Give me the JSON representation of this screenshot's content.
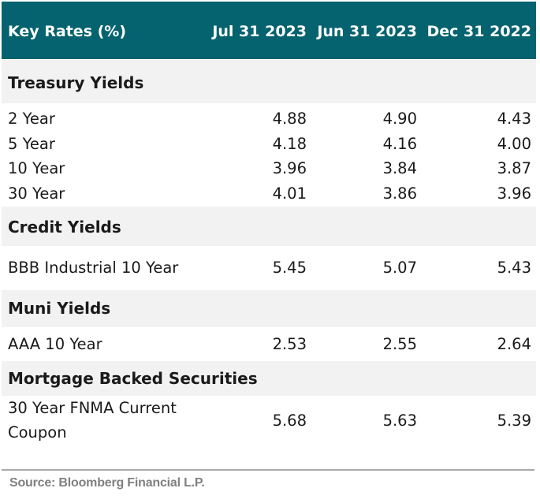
{
  "table": {
    "header": {
      "label": "Key Rates (%)",
      "col1": "Jul 31 2023",
      "col2": "Jun 31 2023",
      "col3": "Dec 31 2022"
    },
    "sections": [
      {
        "title": "Treasury Yields",
        "rows": [
          {
            "label": "2 Year",
            "v1": "4.88",
            "v2": "4.90",
            "v3": "4.43"
          },
          {
            "label": "5 Year",
            "v1": "4.18",
            "v2": "4.16",
            "v3": "4.00"
          },
          {
            "label": "10 Year",
            "v1": "3.96",
            "v2": "3.84",
            "v3": "3.87"
          },
          {
            "label": "30 Year",
            "v1": "4.01",
            "v2": "3.86",
            "v3": "3.96"
          }
        ]
      },
      {
        "title": "Credit Yields",
        "rows": [
          {
            "label": "BBB Industrial 10 Year",
            "v1": "5.45",
            "v2": "5.07",
            "v3": "5.43"
          }
        ]
      },
      {
        "title": "Muni Yields",
        "rows": [
          {
            "label": "AAA 10 Year",
            "v1": "2.53",
            "v2": "2.55",
            "v3": "2.64"
          }
        ]
      },
      {
        "title": "Mortgage Backed Securities",
        "rows": [
          {
            "label_line1": "30 Year FNMA Current",
            "label_line2": "Coupon",
            "v1": "5.68",
            "v2": "5.63",
            "v3": "5.39"
          }
        ]
      }
    ]
  },
  "source": "Source: Bloomberg Financial L.P."
}
